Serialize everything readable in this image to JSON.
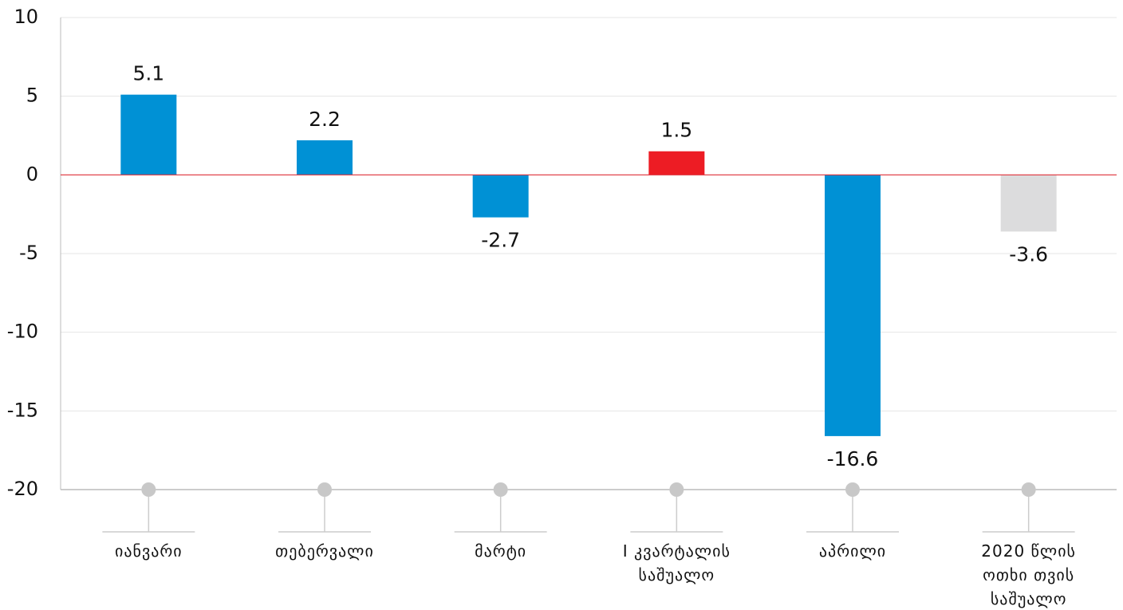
{
  "chart_data": {
    "type": "bar",
    "categories": [
      "იანვარი",
      "თებერვალი",
      "მარტი",
      "I კვარტალის საშუალო",
      "აპრილი",
      "2020 წლის ოთხი თვის საშუალო"
    ],
    "values": [
      5.1,
      2.2,
      -2.7,
      1.5,
      -16.6,
      -3.6
    ],
    "colors": [
      "#0091d5",
      "#0091d5",
      "#0091d5",
      "#ed1c24",
      "#0091d5",
      "#dcdcdd"
    ],
    "ylim": [
      -20,
      10
    ],
    "yticks": [
      -20,
      -15,
      -10,
      -5,
      0,
      5,
      10
    ],
    "grid": true,
    "zero_line_color": "#e0303a"
  }
}
